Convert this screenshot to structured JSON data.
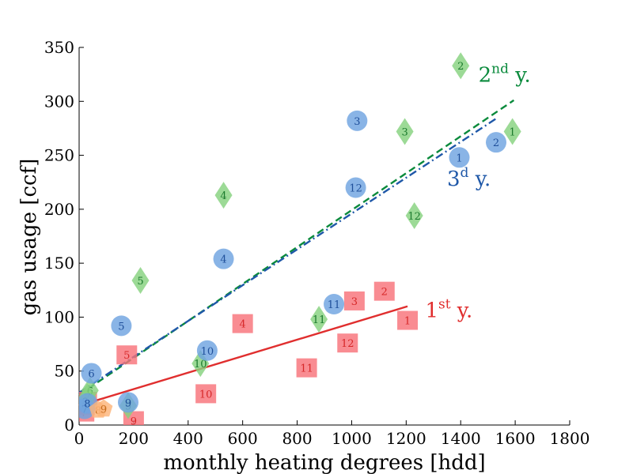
{
  "chart_data": {
    "type": "scatter",
    "title": "",
    "xlabel": "monthly heating degrees [hdd]",
    "ylabel": "gas usage [ccf]",
    "xlim": [
      0,
      1800
    ],
    "ylim": [
      0,
      350
    ],
    "xticks": [
      0,
      200,
      400,
      600,
      800,
      1000,
      1200,
      1400,
      1600,
      1800
    ],
    "yticks": [
      0,
      50,
      100,
      150,
      200,
      250,
      300,
      350
    ],
    "grid": false,
    "series": [
      {
        "name": "1st y.",
        "marker": "square",
        "color": "#f8737a",
        "text_color": "#d62728",
        "points": [
          {
            "x": 1205,
            "y": 97,
            "label": "1"
          },
          {
            "x": 1120,
            "y": 124,
            "label": "2"
          },
          {
            "x": 1010,
            "y": 115,
            "label": "3"
          },
          {
            "x": 600,
            "y": 94,
            "label": "4"
          },
          {
            "x": 175,
            "y": 65,
            "label": "5"
          },
          {
            "x": 28,
            "y": 22,
            "label": "6"
          },
          {
            "x": 18,
            "y": 12,
            "label": "7"
          },
          {
            "x": 20,
            "y": 18,
            "label": "8"
          },
          {
            "x": 200,
            "y": 4,
            "label": "9"
          },
          {
            "x": 465,
            "y": 29,
            "label": "10"
          },
          {
            "x": 835,
            "y": 53,
            "label": "11"
          },
          {
            "x": 985,
            "y": 76,
            "label": "12"
          }
        ],
        "fit": {
          "style": "solid",
          "color": "#e02e2e",
          "x": [
            0,
            1205
          ],
          "y": [
            18,
            110
          ]
        }
      },
      {
        "name": "2nd y.",
        "marker": "diamond",
        "color": "#86d27f",
        "text_color": "#1b7a2d",
        "points": [
          {
            "x": 1590,
            "y": 272,
            "label": "1"
          },
          {
            "x": 1400,
            "y": 333,
            "label": "2"
          },
          {
            "x": 1195,
            "y": 272,
            "label": "3"
          },
          {
            "x": 530,
            "y": 213,
            "label": "4"
          },
          {
            "x": 225,
            "y": 134,
            "label": "5"
          },
          {
            "x": 40,
            "y": 32,
            "label": "6"
          },
          {
            "x": 30,
            "y": 26,
            "label": "7"
          },
          {
            "x": 22,
            "y": 22,
            "label": "8"
          },
          {
            "x": 180,
            "y": 18,
            "label": "9"
          },
          {
            "x": 445,
            "y": 57,
            "label": "10"
          },
          {
            "x": 880,
            "y": 98,
            "label": "11"
          },
          {
            "x": 1230,
            "y": 194,
            "label": "12"
          }
        ],
        "fit": {
          "style": "dashed",
          "color": "#0a8a3c",
          "x": [
            0,
            1595
          ],
          "y": [
            28,
            301
          ]
        }
      },
      {
        "name": "3d y.",
        "marker": "circle",
        "color": "#6fa4e0",
        "text_color": "#1f4f9a",
        "points": [
          {
            "x": 1395,
            "y": 248,
            "label": "1"
          },
          {
            "x": 1530,
            "y": 262,
            "label": "2"
          },
          {
            "x": 1020,
            "y": 282,
            "label": "3"
          },
          {
            "x": 530,
            "y": 154,
            "label": "4"
          },
          {
            "x": 155,
            "y": 92,
            "label": "5"
          },
          {
            "x": 45,
            "y": 48,
            "label": "6"
          },
          {
            "x": 20,
            "y": 15,
            "label": "7"
          },
          {
            "x": 30,
            "y": 20,
            "label": "8"
          },
          {
            "x": 180,
            "y": 21,
            "label": "9"
          },
          {
            "x": 470,
            "y": 69,
            "label": "10"
          },
          {
            "x": 935,
            "y": 112,
            "label": "11"
          },
          {
            "x": 1015,
            "y": 220,
            "label": "12"
          }
        ],
        "fit": {
          "style": "dashdot",
          "color": "#1f58a8",
          "x": [
            0,
            1530
          ],
          "y": [
            30,
            284
          ]
        }
      },
      {
        "name": "",
        "marker": "pentagon",
        "color": "#fdb57a",
        "text_color": "#c46b1c",
        "points": [
          {
            "x": 70,
            "y": 14,
            "label": "8"
          },
          {
            "x": 90,
            "y": 15,
            "label": "9"
          }
        ]
      }
    ],
    "annotations": [
      {
        "text": "1",
        "sup": "st",
        "tail": " y.",
        "x": 1270,
        "y": 100,
        "color": "#e02e2e"
      },
      {
        "text": "2",
        "sup": "nd",
        "tail": " y.",
        "x": 1465,
        "y": 318,
        "color": "#0a8a3c"
      },
      {
        "text": "3",
        "sup": "d",
        "tail": " y.",
        "x": 1350,
        "y": 222,
        "color": "#1f58a8"
      }
    ]
  }
}
